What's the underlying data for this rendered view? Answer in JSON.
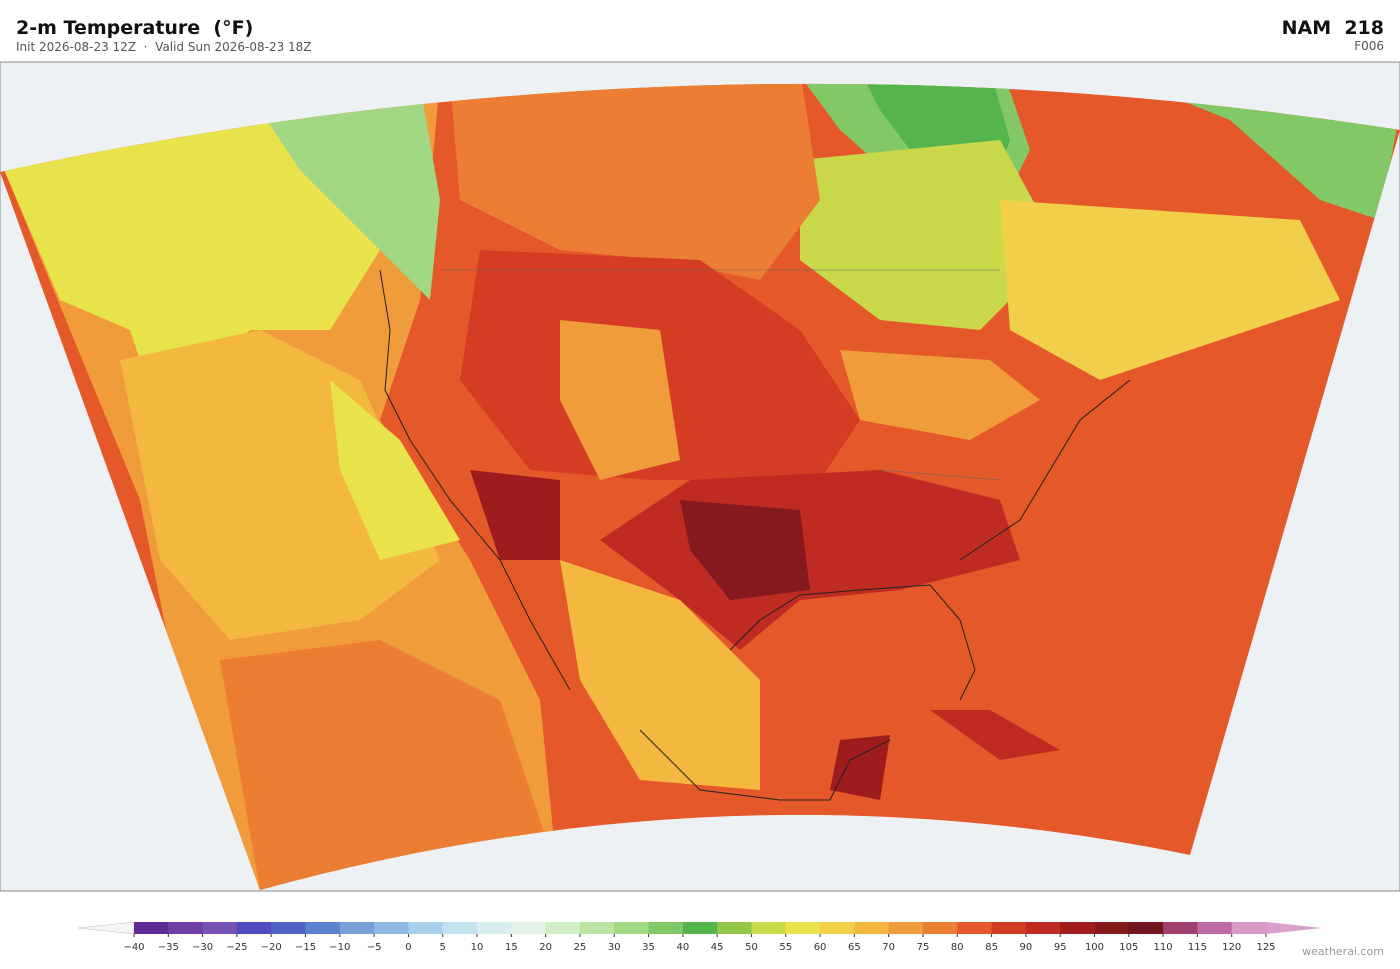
{
  "header": {
    "title": "2-m Temperature  (°F)",
    "subtitle": "Init 2026-08-23 12Z  ·  Valid Sun 2026-08-23 18Z",
    "model": "NAM  218",
    "forecast_hour": "F006"
  },
  "colorbar": {
    "lim": [
      -40,
      125
    ],
    "ticks": [
      {
        "value": -40,
        "label": "−40"
      },
      {
        "value": -35,
        "label": "−35"
      },
      {
        "value": -30,
        "label": "−30"
      },
      {
        "value": -25,
        "label": "−25"
      },
      {
        "value": -20,
        "label": "−20"
      },
      {
        "value": -15,
        "label": "−15"
      },
      {
        "value": -10,
        "label": "−10"
      },
      {
        "value": -5,
        "label": "−5"
      },
      0,
      5,
      10,
      15,
      20,
      25,
      30,
      35,
      40,
      45,
      50,
      55,
      60,
      65,
      70,
      75,
      80,
      85,
      90,
      95,
      100,
      105,
      110,
      115,
      120,
      125
    ],
    "colors": [
      "#5e2a94",
      "#6c3fa3",
      "#7553b5",
      "#4e4bbf",
      "#4f64c9",
      "#5e82d2",
      "#77a0da",
      "#8fbbe2",
      "#a9d0ea",
      "#c3e2f0",
      "#dcedf2",
      "#e5f4ea",
      "#d4ecc8",
      "#bde3a2",
      "#a2d884",
      "#82c866",
      "#56b44c",
      "#94c64a",
      "#c9d94a",
      "#e8e34a",
      "#f2cf48",
      "#f4b740",
      "#f19c3a",
      "#ec7e33",
      "#e4582a",
      "#d43d24",
      "#bf2a22",
      "#9e1c1e",
      "#851a1e",
      "#71151f",
      "#a0406e",
      "#c06aa5",
      "#d99ac8"
    ],
    "under_color": "#f4f4f4",
    "over_color": "#d9a0cc"
  },
  "footer": {
    "credit": "weatherai.com"
  }
}
